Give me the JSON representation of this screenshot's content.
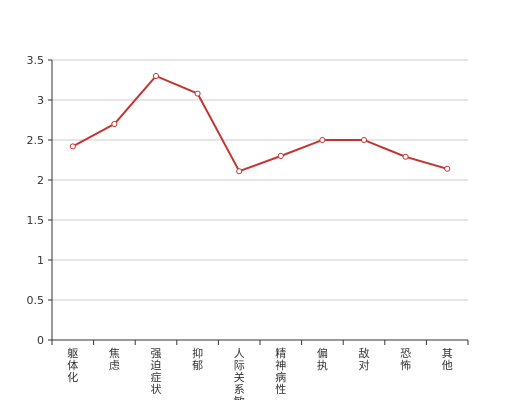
{
  "chart_data": {
    "type": "line",
    "categories": [
      "躯体化",
      "焦虑",
      "强迫症状",
      "抑郁",
      "人际关系敏感",
      "精神病性",
      "偏执",
      "敌对",
      "恐怖",
      "其他"
    ],
    "series": [
      {
        "values": [
          2.42,
          2.7,
          3.3,
          3.08,
          2.11,
          2.3,
          2.5,
          2.5,
          2.29,
          2.14
        ]
      }
    ],
    "yticks": [
      "0",
      "0.5",
      "1",
      "1.5",
      "2",
      "2.5",
      "3",
      "3.5"
    ],
    "ylim": [
      0,
      3.5
    ],
    "grid": true,
    "colors": {
      "line": "#c23531",
      "grid": "#cccccc",
      "axis": "#333333",
      "marker_fill": "#ffffff"
    }
  }
}
